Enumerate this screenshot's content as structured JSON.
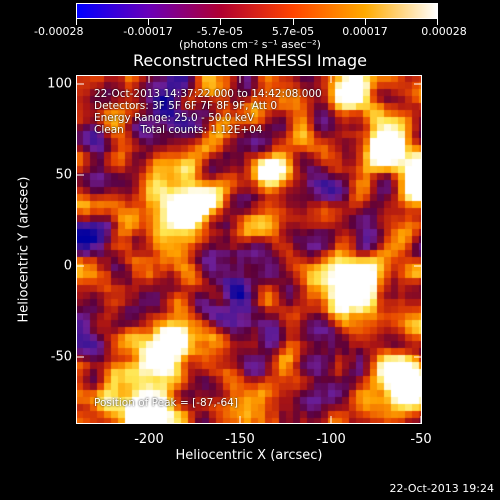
{
  "colorbar": {
    "tick_labels": [
      "-0.00028",
      "-0.00017",
      "-5.7e-05",
      "5.7e-05",
      "0.00017",
      "0.00028"
    ],
    "units": "(photons cm⁻² s⁻¹ asec⁻²)",
    "gradient": [
      "#0000ff",
      "#6a00b8",
      "#b00030",
      "#ff4400",
      "#ffaa00",
      "#ffffff"
    ]
  },
  "title": "Reconstructed RHESSI Image",
  "annotations": {
    "time_range": "22-Oct-2013 14:37:22.000 to 14:42:08.000",
    "detectors": "Detectors: 3F 5F 6F 7F 8F 9F, Att 0",
    "energy": "Energy Range: 25.0 - 50.0 keV",
    "clean": "Clean     Total counts: 1.12E+04",
    "peak": "Position of Peak = [-87,-64]"
  },
  "axes": {
    "xlabel": "Heliocentric X (arcsec)",
    "ylabel": "Heliocentric Y (arcsec)",
    "xticks": [
      "-200",
      "-150",
      "-100",
      "-50"
    ],
    "yticks": [
      "100",
      "50",
      "0",
      "-50"
    ]
  },
  "timestamp": "22-Oct-2013 19:24"
}
